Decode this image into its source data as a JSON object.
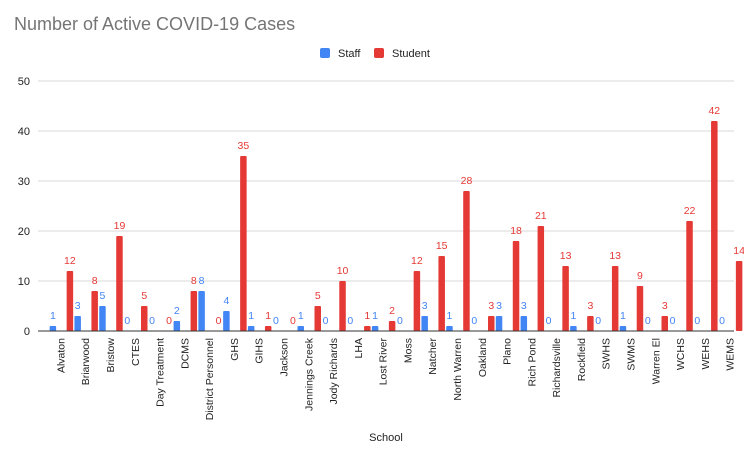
{
  "chart_data": {
    "type": "bar",
    "title": "Number of Active COVID-19 Cases",
    "xlabel": "School",
    "ylabel": "",
    "ylim": [
      0,
      50
    ],
    "yticks": [
      0,
      10,
      20,
      30,
      40,
      50
    ],
    "grid": true,
    "legend_position": "top",
    "categories": [
      "Alvaton",
      "Briarwood",
      "Bristow",
      "CTES",
      "Day Treatment",
      "DCMS",
      "District Personnel",
      "GHS",
      "GIHS",
      "Jackson",
      "Jennings Creek",
      "Jody Richards",
      "LHA",
      "Lost River",
      "Moss",
      "Natcher",
      "North Warren",
      "Oakland",
      "Plano",
      "Rich Pond",
      "Richardsville",
      "Rockfield",
      "SWHS",
      "SWMS",
      "Warren El",
      "WCHS",
      "WEHS",
      "WEMS"
    ],
    "series": [
      {
        "name": "Staff",
        "color": "#4285f4",
        "values": [
          1,
          3,
          5,
          0,
          0,
          2,
          8,
          4,
          1,
          0,
          1,
          0,
          0,
          1,
          0,
          3,
          1,
          0,
          3,
          3,
          0,
          1,
          0,
          1,
          0,
          0,
          0,
          0
        ]
      },
      {
        "name": "Student",
        "color": "#e53935",
        "values": [
          12,
          8,
          19,
          5,
          0,
          8,
          0,
          35,
          1,
          0,
          5,
          10,
          1,
          2,
          12,
          15,
          28,
          3,
          18,
          21,
          13,
          3,
          13,
          9,
          3,
          22,
          42,
          14
        ]
      }
    ]
  }
}
